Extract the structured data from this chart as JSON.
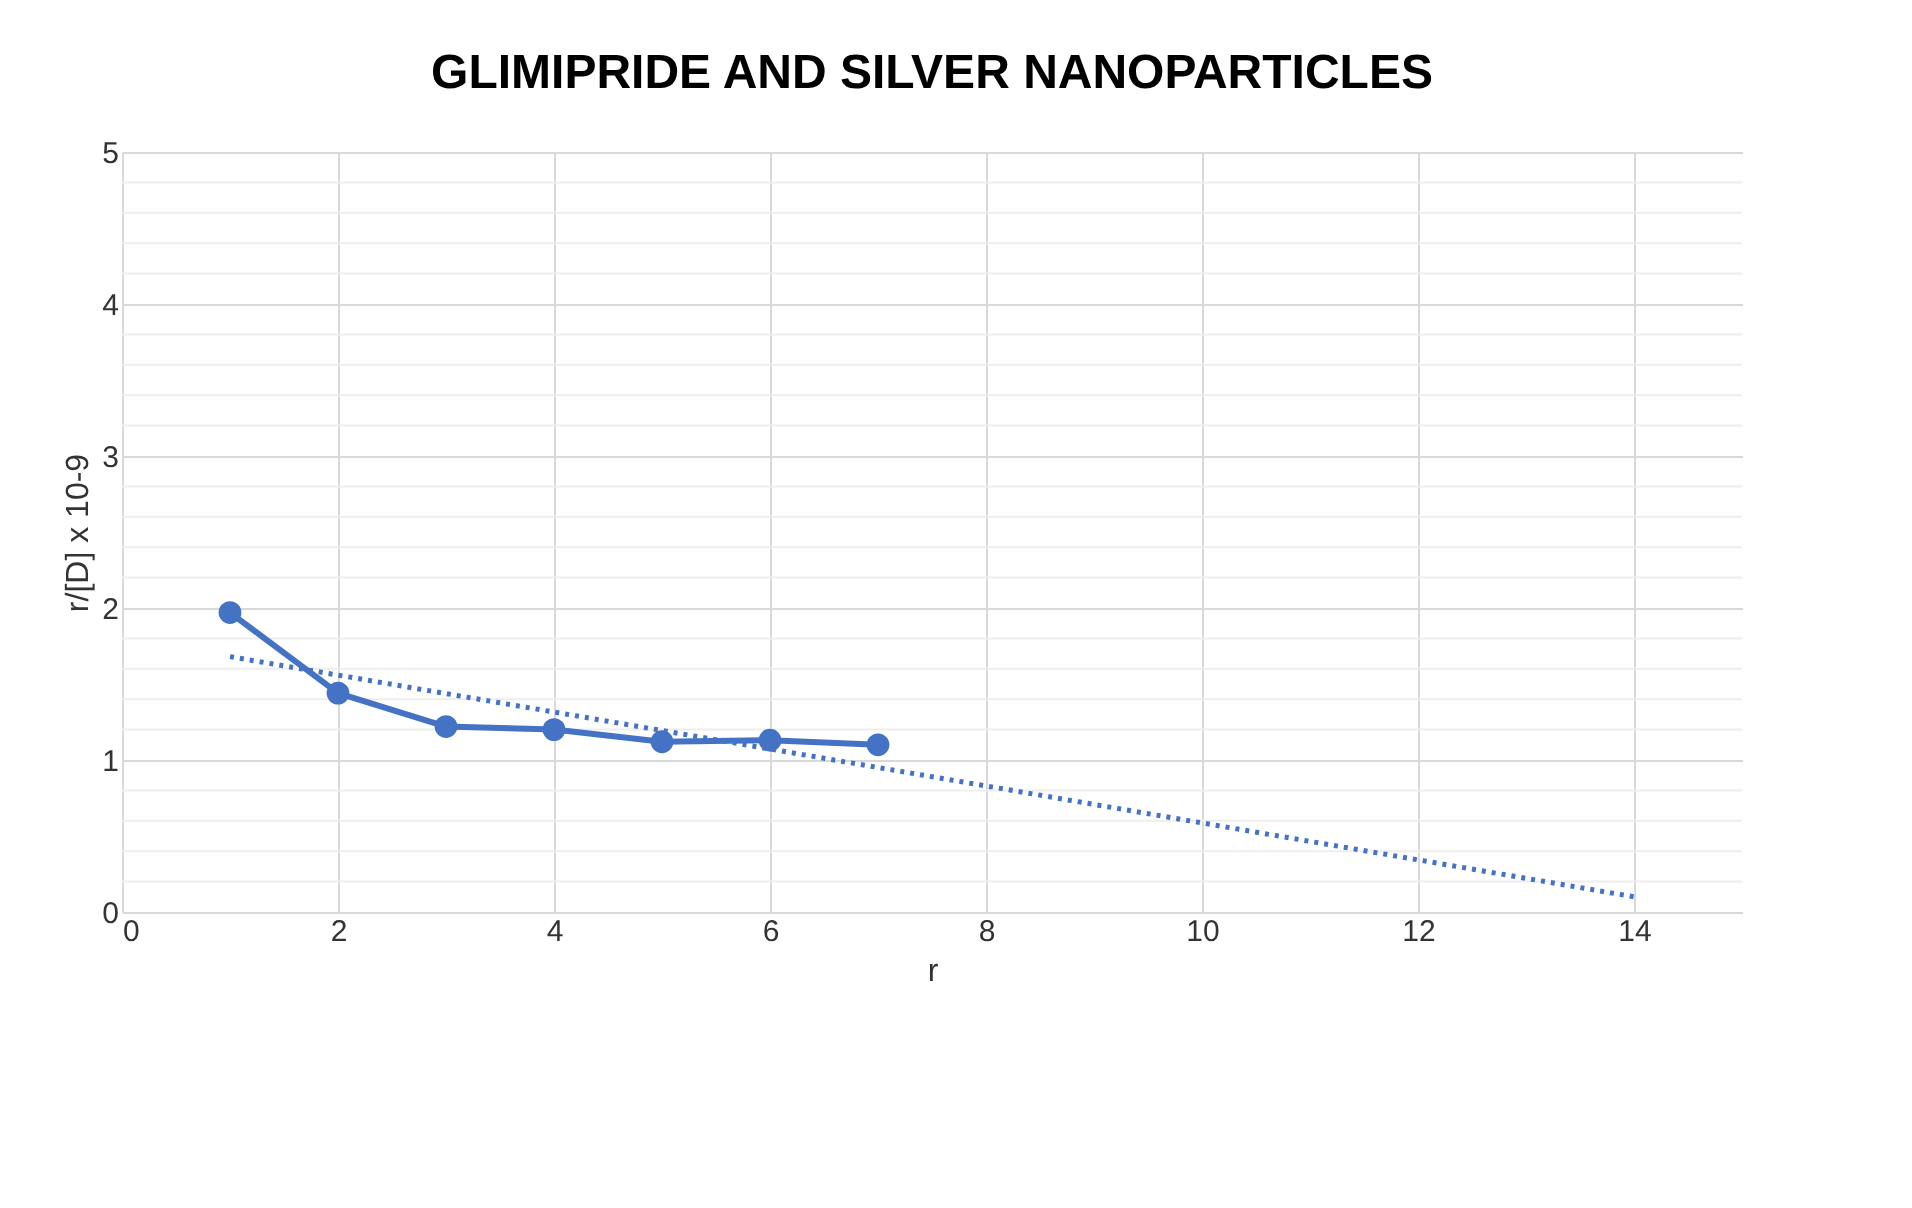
{
  "chart_data": {
    "type": "line",
    "title": "GLIMIPRIDE AND SILVER NANOPARTICLES",
    "xlabel": "r",
    "ylabel": "r/[D] x 10-9",
    "series": [
      {
        "color": "#4472c4",
        "x": [
          1,
          2,
          3,
          4,
          5,
          6,
          7
        ],
        "values": [
          1.97,
          1.44,
          1.22,
          1.2,
          1.12,
          1.13,
          1.1
        ],
        "marker": "circle",
        "line_style": "solid"
      },
      {
        "color": "#4472c4",
        "x": [
          1,
          14
        ],
        "values": [
          1.68,
          0.1
        ],
        "marker": "none",
        "line_style": "dotted"
      }
    ],
    "xlim": [
      0,
      15
    ],
    "xticks": [
      0,
      2,
      4,
      6,
      8,
      10,
      12,
      14
    ],
    "ylim": [
      0,
      5
    ],
    "yticks": [
      0,
      1,
      2,
      3,
      4,
      5
    ],
    "grid": true
  }
}
